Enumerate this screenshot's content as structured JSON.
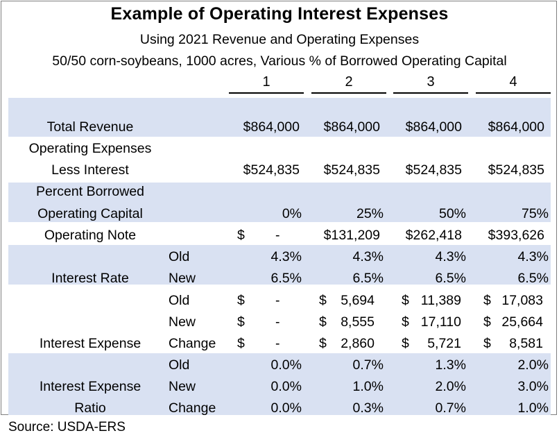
{
  "title": "Example of Operating Interest Expenses",
  "subtitle1": "Using 2021 Revenue and Operating Expenses",
  "subtitle2": "50/50 corn-soybeans, 1000 acres, Various % of Borrowed Operating Capital",
  "columns": [
    "1",
    "2",
    "3",
    "4"
  ],
  "band_color": "#d9e1f2",
  "rows": {
    "total_revenue": {
      "label": "Total Revenue",
      "values": [
        "$864,000",
        "$864,000",
        "$864,000",
        "$864,000"
      ]
    },
    "opex": {
      "label1": "Operating Expenses",
      "label2": "Less Interest",
      "values": [
        "$524,835",
        "$524,835",
        "$524,835",
        "$524,835"
      ]
    },
    "pct_borrowed": {
      "label1": "Percent Borrowed",
      "label2": "Operating Capital",
      "values": [
        "0%",
        "25%",
        "50%",
        "75%"
      ]
    },
    "op_note": {
      "label": "Operating Note",
      "first_sym": "$",
      "first_dash": "-",
      "values": [
        "$131,209",
        "$262,418",
        "$393,626"
      ]
    },
    "interest_rate": {
      "label": "Interest Rate",
      "old_label": "Old",
      "old_values": [
        "4.3%",
        "4.3%",
        "4.3%",
        "4.3%"
      ],
      "new_label": "New",
      "new_values": [
        "6.5%",
        "6.5%",
        "6.5%",
        "6.5%"
      ]
    },
    "interest_expense": {
      "label": "Interest Expense",
      "old_label": "Old",
      "new_label": "New",
      "change_label": "Change",
      "currency": "$",
      "dash": "-",
      "old_values": [
        "5,694",
        "11,389",
        "17,083"
      ],
      "new_values": [
        "8,555",
        "17,110",
        "25,664"
      ],
      "change_values": [
        "2,860",
        "5,721",
        "8,581"
      ]
    },
    "ratio": {
      "label1": "Interest Expense",
      "label2": "Ratio",
      "old_label": "Old",
      "new_label": "New",
      "change_label": "Change",
      "old_values": [
        "0.0%",
        "0.7%",
        "1.3%",
        "2.0%"
      ],
      "new_values": [
        "0.0%",
        "1.0%",
        "2.0%",
        "3.0%"
      ],
      "change_values": [
        "0.0%",
        "0.3%",
        "0.7%",
        "1.0%"
      ]
    }
  },
  "source": "Source: USDA-ERS"
}
